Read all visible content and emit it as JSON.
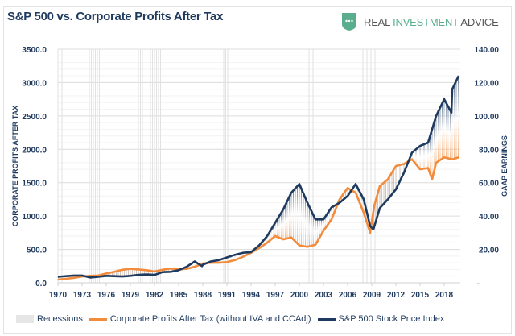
{
  "title": "S&P 500 vs. Corporate Profits After Tax",
  "logo": {
    "part1": "REAL ",
    "part2": "INVESTMENT",
    "part3": " ADVICE"
  },
  "colors": {
    "profits": "#f28c3c",
    "sp500": "#1f3a5f",
    "recessions": "#e6e6e6",
    "text": "#1f3a5f",
    "logo_green": "#5aae8e"
  },
  "chart_data": {
    "type": "line",
    "title": "S&P 500 vs. Corporate Profits After Tax",
    "ylabel": "CORPORATE PROFITS AFTER TAX",
    "y2label": "GAAP EARNINGS",
    "xlim": [
      1970,
      2020
    ],
    "ylim": [
      0,
      3500
    ],
    "y2lim": [
      0,
      140
    ],
    "x_ticks": [
      "1970",
      "1973",
      "1976",
      "1979",
      "1982",
      "1985",
      "1988",
      "1991",
      "1994",
      "1997",
      "2000",
      "2003",
      "2006",
      "2009",
      "2012",
      "2015",
      "2018"
    ],
    "y_ticks": [
      "0.0",
      "500.0",
      "1000.0",
      "1500.0",
      "2000.0",
      "2500.0",
      "3000.0",
      "3500.0"
    ],
    "y2_ticks": [
      "-",
      "20.00",
      "40.00",
      "60.00",
      "80.00",
      "100.00",
      "120.00",
      "140.00"
    ],
    "grid": true,
    "legend_placement": "bottom",
    "recessions": [
      [
        1970.0,
        1970.9
      ],
      [
        1973.9,
        1975.2
      ],
      [
        1980.0,
        1980.5
      ],
      [
        1981.5,
        1982.9
      ],
      [
        1990.6,
        1991.2
      ],
      [
        2001.2,
        2001.9
      ],
      [
        2007.9,
        2009.5
      ]
    ],
    "series": [
      {
        "name": "Corporate Profits After Tax (without IVA and CCAdj)",
        "x": [
          1970,
          1971,
          1972,
          1973,
          1974,
          1975,
          1976,
          1977,
          1978,
          1979,
          1980,
          1981,
          1982,
          1983,
          1984,
          1985,
          1986,
          1987,
          1988,
          1989,
          1990,
          1991,
          1992,
          1993,
          1994,
          1995,
          1996,
          1997,
          1998,
          1999,
          2000,
          2001,
          2002,
          2003,
          2004,
          2005,
          2006,
          2007,
          2008,
          2008.8,
          2009.3,
          2010,
          2011,
          2012,
          2013,
          2014,
          2015,
          2016,
          2016.5,
          2017,
          2018,
          2019,
          2019.8
        ],
        "values": [
          50,
          60,
          75,
          95,
          105,
          110,
          140,
          165,
          195,
          210,
          200,
          190,
          170,
          195,
          215,
          200,
          210,
          240,
          290,
          300,
          300,
          310,
          340,
          390,
          450,
          520,
          600,
          700,
          650,
          680,
          560,
          540,
          570,
          780,
          950,
          1250,
          1420,
          1350,
          1050,
          750,
          1150,
          1450,
          1550,
          1750,
          1780,
          1850,
          1700,
          1720,
          1550,
          1800,
          1880,
          1850,
          1880
        ]
      },
      {
        "name": "S&P 500 Stock Price Index",
        "x": [
          1970,
          1971,
          1972,
          1973,
          1974,
          1975,
          1976,
          1977,
          1978,
          1979,
          1980,
          1981,
          1982,
          1983,
          1984,
          1985,
          1986,
          1987,
          1987.9,
          1988,
          1989,
          1990,
          1991,
          1992,
          1993,
          1994,
          1995,
          1996,
          1997,
          1998,
          1999,
          2000,
          2001,
          2002,
          2003,
          2004,
          2005,
          2006,
          2007,
          2008,
          2008.8,
          2009.2,
          2010,
          2011,
          2012,
          2013,
          2014,
          2015,
          2016,
          2017,
          2018,
          2018.9,
          2019,
          2019.8
        ],
        "values": [
          90,
          100,
          110,
          110,
          80,
          90,
          105,
          100,
          95,
          105,
          120,
          125,
          120,
          160,
          165,
          190,
          240,
          320,
          250,
          270,
          320,
          340,
          380,
          420,
          450,
          460,
          560,
          700,
          900,
          1100,
          1350,
          1480,
          1200,
          950,
          950,
          1130,
          1200,
          1300,
          1480,
          1250,
          850,
          800,
          1120,
          1250,
          1400,
          1650,
          1950,
          2050,
          2100,
          2500,
          2750,
          2550,
          2900,
          3100
        ]
      }
    ]
  },
  "legend": {
    "recessions": "Recessions",
    "profits": "Corporate Profits After Tax (without IVA and CCAdj)",
    "sp500": "S&P 500 Stock Price Index"
  }
}
